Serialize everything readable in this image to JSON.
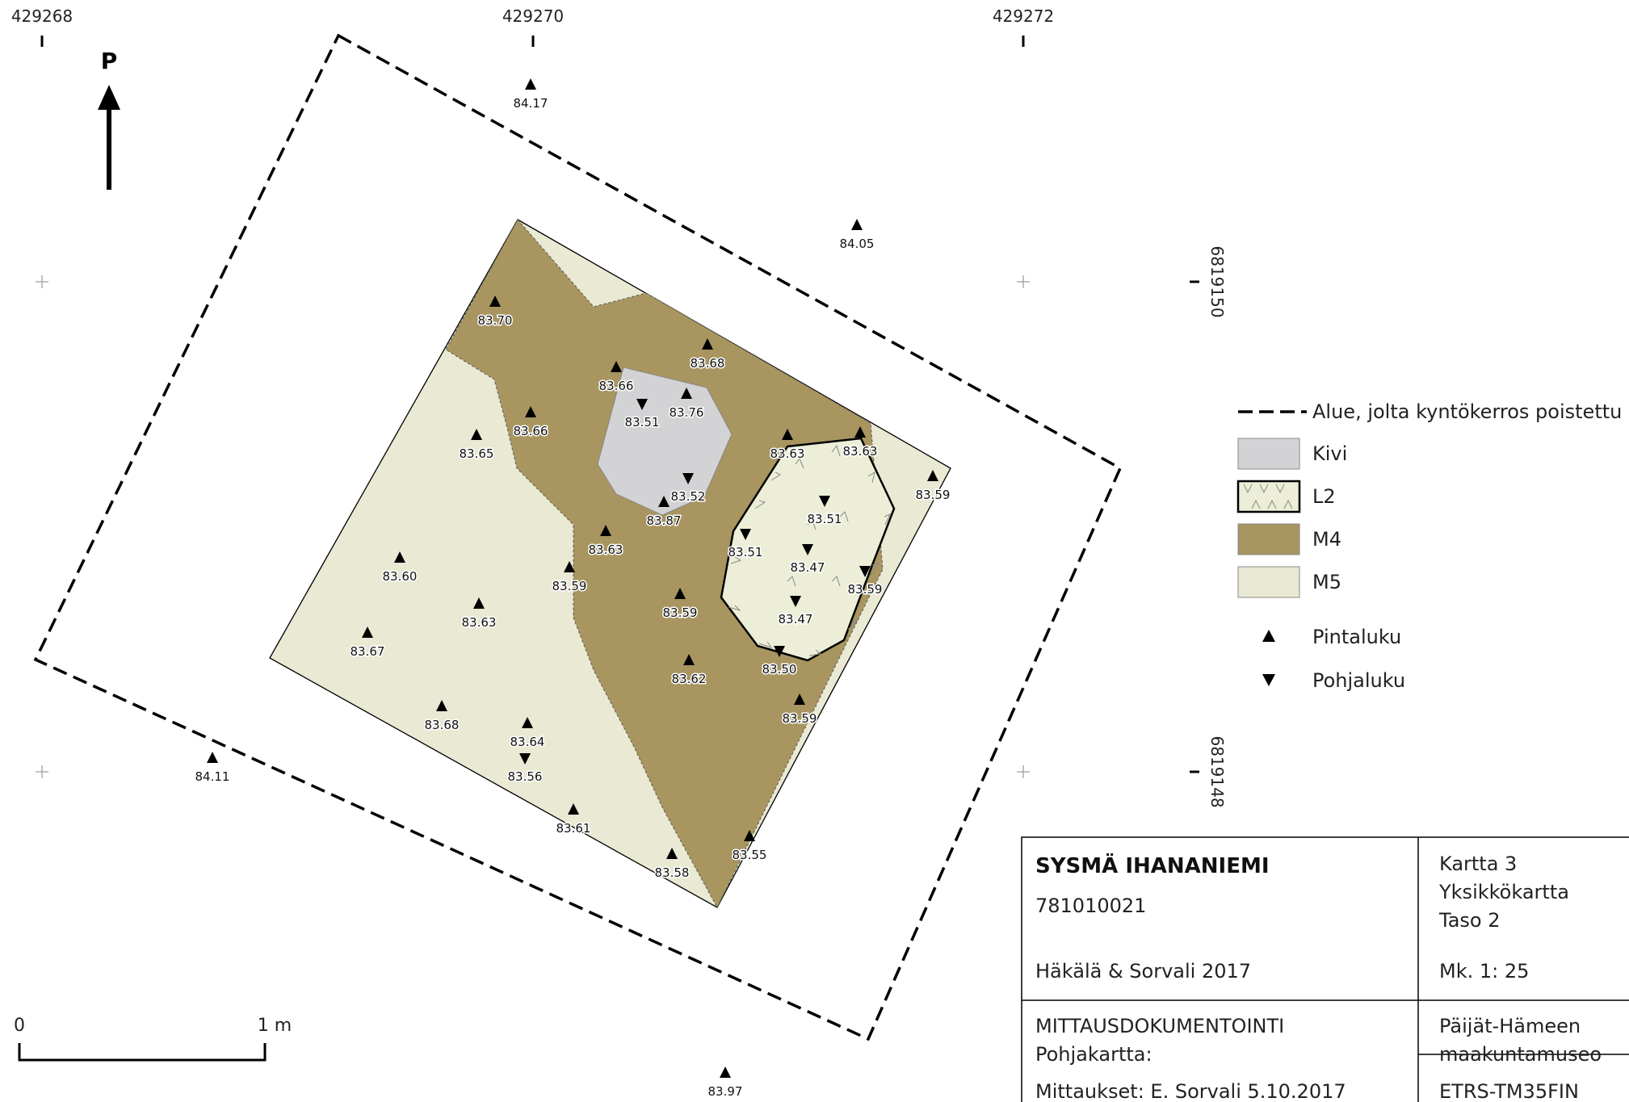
{
  "grid": {
    "x_labels": [
      "429268",
      "429270",
      "429272"
    ],
    "y_labels": [
      "6819150",
      "6819148"
    ]
  },
  "north_label": "P",
  "legend": {
    "items": [
      {
        "label": "Alue, jolta kyntökerros poistettu",
        "symbol": "dashed-line"
      },
      {
        "label": "Kivi",
        "symbol": "fill",
        "color": "#d3d3d5"
      },
      {
        "label": "L2",
        "symbol": "hatched-fill",
        "color": "#eceed8"
      },
      {
        "label": "M4",
        "symbol": "fill",
        "color": "#a89560"
      },
      {
        "label": "M5",
        "symbol": "fill",
        "color": "#e9e9d4"
      },
      {
        "label": "Pintaluku",
        "symbol": "triangle-up"
      },
      {
        "label": "Pohjaluku",
        "symbol": "triangle-down"
      }
    ]
  },
  "scale_bar": {
    "start_label": "0",
    "end_label": "1 m"
  },
  "title_block": {
    "site": "SYSMÄ IHANANIEMI",
    "code": "781010021",
    "authors": "Häkälä & Sorvali 2017",
    "map_info": [
      "Kartta 3",
      "Yksikkökartta",
      "Taso 2"
    ],
    "scale": "Mk. 1: 25",
    "doc_type": "MITTAUSDOKUMENTOINTI",
    "base_map": "Pohjakartta:",
    "survey": "Mittaukset: E. Sorvali 5.10.2017",
    "museum": [
      "Päijät-Hämeen",
      "maakuntamuseo"
    ],
    "crs": "ETRS-TM35FIN"
  },
  "surface_points": [
    {
      "value": "84.17"
    },
    {
      "value": "84.05"
    },
    {
      "value": "84.11"
    },
    {
      "value": "83.97"
    },
    {
      "value": "83.70"
    },
    {
      "value": "83.68"
    },
    {
      "value": "83.66"
    },
    {
      "value": "83.76"
    },
    {
      "value": "83.66"
    },
    {
      "value": "83.65"
    },
    {
      "value": "83.63"
    },
    {
      "value": "83.63"
    },
    {
      "value": "83.59"
    },
    {
      "value": "83.87"
    },
    {
      "value": "83.63"
    },
    {
      "value": "83.59"
    },
    {
      "value": "83.60"
    },
    {
      "value": "83.63"
    },
    {
      "value": "83.67"
    },
    {
      "value": "83.59"
    },
    {
      "value": "83.62"
    },
    {
      "value": "83.59"
    },
    {
      "value": "83.68"
    },
    {
      "value": "83.64"
    },
    {
      "value": "83.61"
    },
    {
      "value": "83.58"
    },
    {
      "value": "83.55"
    }
  ],
  "bottom_points": [
    {
      "value": "83.51"
    },
    {
      "value": "83.52"
    },
    {
      "value": "83.51"
    },
    {
      "value": "83.51"
    },
    {
      "value": "83.47"
    },
    {
      "value": "83.59"
    },
    {
      "value": "83.47"
    },
    {
      "value": "83.50"
    },
    {
      "value": "83.56"
    }
  ]
}
